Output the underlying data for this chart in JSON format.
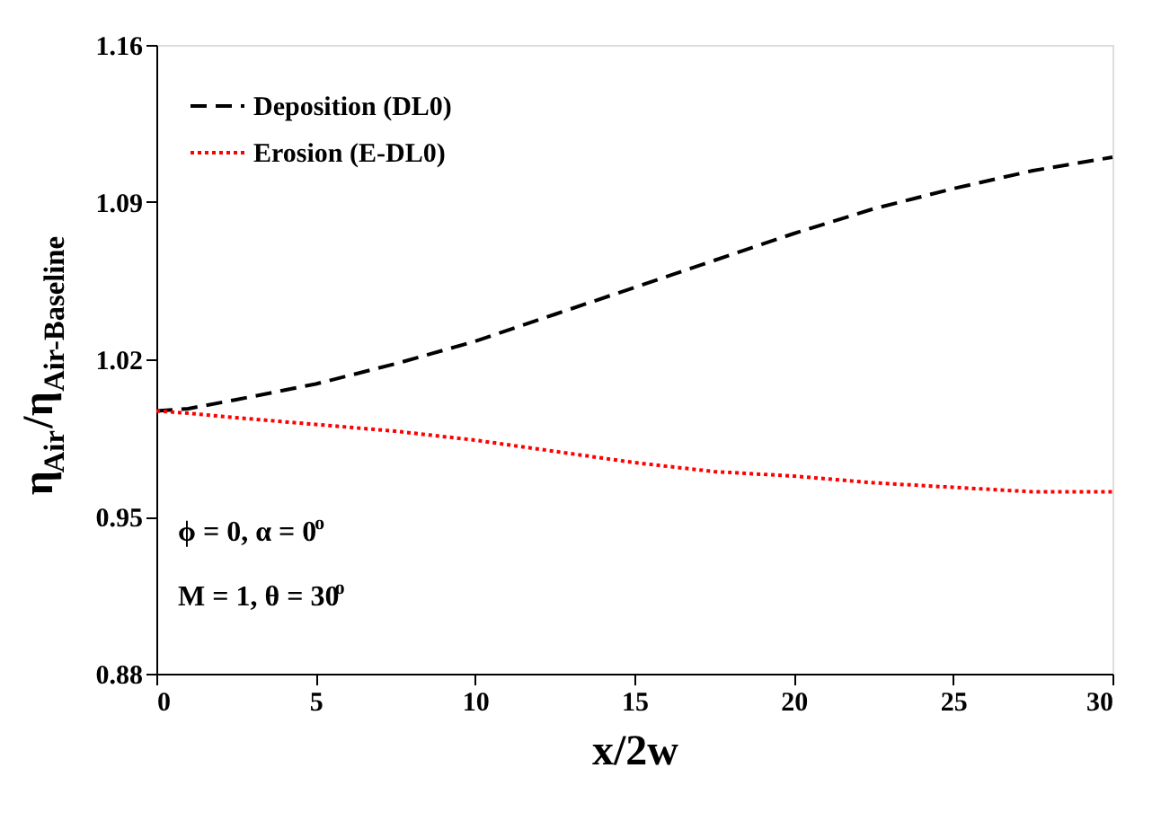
{
  "chart_data": {
    "type": "line",
    "xlabel": "x/2w",
    "ylabel": "η$_{Air}$/η$_{Air-Baseline}$",
    "x": [
      0,
      1,
      2.5,
      5,
      7.5,
      10,
      12.5,
      15,
      17.5,
      20,
      22.5,
      25,
      27.5,
      30
    ],
    "series": [
      {
        "name": "Deposition (DL0)",
        "color": "#000000",
        "line_style": "dashed",
        "values": [
          0.997,
          0.998,
          1.002,
          1.009,
          1.018,
          1.028,
          1.04,
          1.052,
          1.064,
          1.076,
          1.087,
          1.096,
          1.104,
          1.11
        ]
      },
      {
        "name": "Erosion (E-DL0)",
        "color": "#ff0000",
        "line_style": "dotted",
        "values": [
          0.997,
          0.996,
          0.994,
          0.991,
          0.988,
          0.984,
          0.979,
          0.974,
          0.97,
          0.968,
          0.965,
          0.963,
          0.961,
          0.961
        ]
      }
    ],
    "xlim": [
      0,
      30
    ],
    "xticks": [
      0,
      5,
      10,
      15,
      20,
      25,
      30
    ],
    "ylim": [
      0.88,
      1.16
    ],
    "yticks": [
      0.88,
      0.95,
      1.02,
      1.09,
      1.16
    ],
    "grid": false,
    "legend": "top left",
    "marker": "none",
    "annotations": [
      "ϕ = 0, α = 0$^{o}$",
      "M = 1, θ = 30$^{o}$"
    ]
  }
}
